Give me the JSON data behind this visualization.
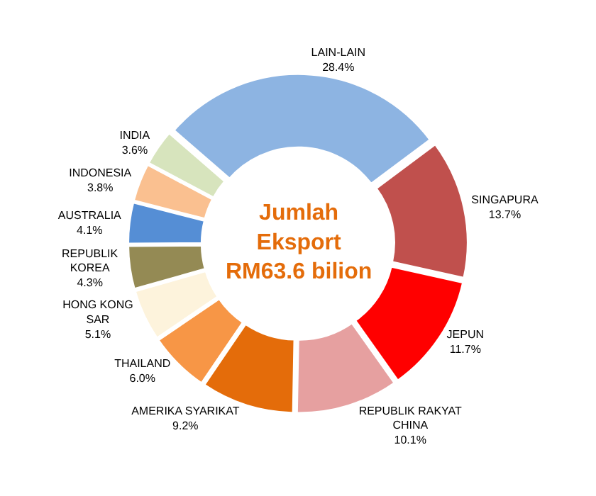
{
  "chart_data": {
    "type": "donut",
    "categories": [
      "LAIN-LAIN",
      "SINGAPURA",
      "JEPUN",
      "REPUBLIK RAKYAT\nCHINA",
      "AMERIKA SYARIKAT",
      "THAILAND",
      "HONG KONG\nSAR",
      "REPUBLIK\nKOREA",
      "AUSTRALIA",
      "INDONESIA",
      "INDIA"
    ],
    "values": [
      28.4,
      13.7,
      11.7,
      10.1,
      9.2,
      6.0,
      5.1,
      4.3,
      4.1,
      3.8,
      3.6
    ],
    "colors": [
      "#8db4e2",
      "#c0504d",
      "#ff0000",
      "#e6a0a0",
      "#e46c0a",
      "#f79646",
      "#fdf3dc",
      "#948a54",
      "#558ed5",
      "#fac090",
      "#d7e4bd"
    ],
    "value_labels": [
      "28.4%",
      "13.7%",
      "11.7%",
      "10.1%",
      "9.2%",
      "6.0%",
      "5.1%",
      "4.3%",
      "4.1%",
      "3.8%",
      "3.6%"
    ],
    "annotations": [
      "Jumlah\nEksport\nRM63.6 bilion"
    ],
    "legend": false
  }
}
